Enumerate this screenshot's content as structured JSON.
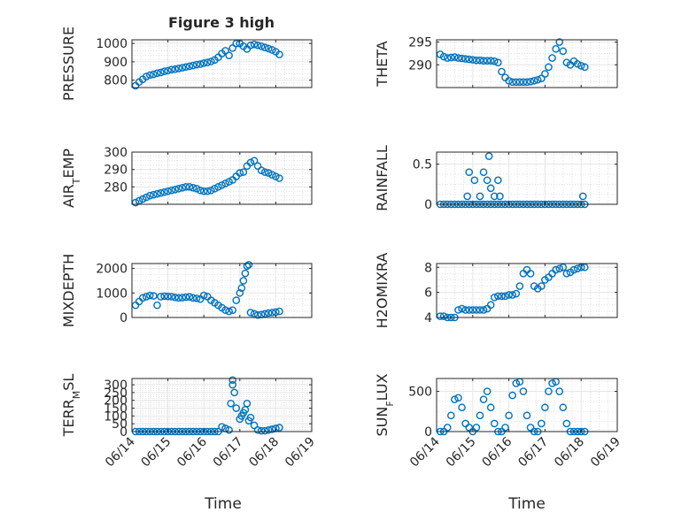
{
  "figure": {
    "title": "Figure 3 high",
    "xlabel": "Time"
  },
  "chart_data": [
    {
      "type": "scatter",
      "ylabel": "PRESSURE",
      "ylim": [
        760,
        1020
      ],
      "yticks": [
        800,
        900,
        1000
      ],
      "x_tick_labels": [
        "06/14",
        "06/15",
        "06/16",
        "06/17",
        "06/18",
        "06/19"
      ],
      "x_range_days": [
        0,
        5
      ],
      "grid": true,
      "marker_color": "#0072BD",
      "x": [
        0.1,
        0.2,
        0.3,
        0.4,
        0.5,
        0.6,
        0.7,
        0.8,
        0.9,
        1.0,
        1.1,
        1.2,
        1.3,
        1.4,
        1.5,
        1.6,
        1.7,
        1.8,
        1.9,
        2.0,
        2.1,
        2.2,
        2.3,
        2.4,
        2.5,
        2.6,
        2.7,
        2.8,
        2.9,
        3.0,
        3.1,
        3.2,
        3.3,
        3.4,
        3.5,
        3.6,
        3.7,
        3.8,
        3.9,
        4.0,
        4.1
      ],
      "y": [
        770,
        790,
        805,
        820,
        828,
        832,
        838,
        842,
        848,
        852,
        858,
        860,
        864,
        868,
        872,
        876,
        880,
        885,
        888,
        893,
        897,
        902,
        910,
        925,
        945,
        960,
        935,
        975,
        1000,
        1000,
        985,
        970,
        990,
        995,
        990,
        985,
        978,
        972,
        965,
        955,
        940
      ]
    },
    {
      "type": "scatter",
      "ylabel": "THETA",
      "ylim": [
        285,
        295.5
      ],
      "yticks": [
        290,
        295
      ],
      "x_tick_labels": [
        "06/14",
        "06/15",
        "06/16",
        "06/17",
        "06/18",
        "06/19"
      ],
      "x_range_days": [
        0,
        5
      ],
      "grid": true,
      "marker_color": "#0072BD",
      "x": [
        0.1,
        0.2,
        0.3,
        0.4,
        0.5,
        0.6,
        0.7,
        0.8,
        0.9,
        1.0,
        1.1,
        1.2,
        1.3,
        1.4,
        1.5,
        1.6,
        1.7,
        1.8,
        1.9,
        2.0,
        2.1,
        2.2,
        2.3,
        2.4,
        2.5,
        2.6,
        2.7,
        2.8,
        2.9,
        3.0,
        3.1,
        3.2,
        3.3,
        3.4,
        3.5,
        3.6,
        3.7,
        3.8,
        3.9,
        4.0,
        4.1
      ],
      "y": [
        292.3,
        291.8,
        291.5,
        291.6,
        291.7,
        291.5,
        291.4,
        291.3,
        291.2,
        291.1,
        291.0,
        291.0,
        290.9,
        290.9,
        290.9,
        290.8,
        290.5,
        288.5,
        287.2,
        286.5,
        286.2,
        286.2,
        286.2,
        286.2,
        286.2,
        286.3,
        286.5,
        286.7,
        287.0,
        288.0,
        289.5,
        291.5,
        293.5,
        295.0,
        293.0,
        290.5,
        290.0,
        290.8,
        290.2,
        289.8,
        289.5
      ]
    },
    {
      "type": "scatter",
      "ylabel": "AIR_TEMP",
      "ylim": [
        270,
        300
      ],
      "yticks": [
        280,
        290,
        300
      ],
      "x_tick_labels": [
        "06/14",
        "06/15",
        "06/16",
        "06/17",
        "06/18",
        "06/19"
      ],
      "x_range_days": [
        0,
        5
      ],
      "grid": true,
      "marker_color": "#0072BD",
      "x": [
        0.1,
        0.2,
        0.3,
        0.4,
        0.5,
        0.6,
        0.7,
        0.8,
        0.9,
        1.0,
        1.1,
        1.2,
        1.3,
        1.4,
        1.5,
        1.6,
        1.7,
        1.8,
        1.9,
        2.0,
        2.1,
        2.2,
        2.3,
        2.4,
        2.5,
        2.6,
        2.7,
        2.8,
        2.9,
        3.0,
        3.1,
        3.2,
        3.3,
        3.4,
        3.5,
        3.6,
        3.7,
        3.8,
        3.9,
        4.0,
        4.1
      ],
      "y": [
        271,
        272,
        273,
        274,
        275,
        275.5,
        276,
        276.5,
        277,
        277.5,
        278,
        278.5,
        279,
        279.5,
        280,
        280,
        279.5,
        279,
        278,
        277.5,
        277.5,
        278,
        279,
        280,
        281,
        282,
        283,
        284,
        286,
        288,
        288.5,
        292,
        294,
        295,
        292,
        289.5,
        288.5,
        288,
        287,
        286,
        285
      ]
    },
    {
      "type": "scatter",
      "ylabel": "RAINFALL",
      "ylim": [
        0,
        0.65
      ],
      "yticks": [
        0,
        0.5
      ],
      "x_tick_labels": [
        "06/14",
        "06/15",
        "06/16",
        "06/17",
        "06/18",
        "06/19"
      ],
      "x_range_days": [
        0,
        5
      ],
      "grid": true,
      "marker_color": "#0072BD",
      "x": [
        0.1,
        0.2,
        0.3,
        0.4,
        0.5,
        0.6,
        0.7,
        0.8,
        0.9,
        1.0,
        1.1,
        1.2,
        1.3,
        1.4,
        1.5,
        1.6,
        1.7,
        1.8,
        1.9,
        2.0,
        2.1,
        2.2,
        2.3,
        2.4,
        2.5,
        2.6,
        2.7,
        2.8,
        2.9,
        3.0,
        3.1,
        3.2,
        3.3,
        3.4,
        3.5,
        3.6,
        3.7,
        3.8,
        3.9,
        4.0,
        4.1,
        0.85,
        0.9,
        1.05,
        1.2,
        1.3,
        1.4,
        1.45,
        1.5,
        1.6,
        1.7,
        1.75,
        4.05
      ],
      "y": [
        0,
        0,
        0,
        0,
        0,
        0,
        0,
        0,
        0,
        0,
        0,
        0,
        0,
        0,
        0,
        0,
        0,
        0,
        0,
        0,
        0,
        0,
        0,
        0,
        0,
        0,
        0,
        0,
        0,
        0,
        0,
        0,
        0,
        0,
        0,
        0,
        0,
        0,
        0,
        0,
        0,
        0.1,
        0.4,
        0.3,
        0.1,
        0.4,
        0.3,
        0.6,
        0.2,
        0.1,
        0.3,
        0.1,
        0.1
      ]
    },
    {
      "type": "scatter",
      "ylabel": "MIXDEPTH",
      "ylim": [
        0,
        2200
      ],
      "yticks": [
        0,
        1000,
        2000
      ],
      "x_tick_labels": [
        "06/14",
        "06/15",
        "06/16",
        "06/17",
        "06/18",
        "06/19"
      ],
      "x_range_days": [
        0,
        5
      ],
      "grid": true,
      "marker_color": "#0072BD",
      "x": [
        0.1,
        0.2,
        0.3,
        0.4,
        0.5,
        0.6,
        0.7,
        0.8,
        0.9,
        1.0,
        1.1,
        1.2,
        1.3,
        1.4,
        1.5,
        1.6,
        1.7,
        1.8,
        1.9,
        2.0,
        2.1,
        2.2,
        2.3,
        2.4,
        2.5,
        2.6,
        2.7,
        2.8,
        2.9,
        3.0,
        3.1,
        3.2,
        3.3,
        3.4,
        3.5,
        3.6,
        3.7,
        3.8,
        3.9,
        4.0,
        4.1,
        3.05,
        3.15,
        3.25
      ],
      "y": [
        500,
        650,
        800,
        850,
        900,
        880,
        500,
        850,
        870,
        860,
        850,
        820,
        800,
        810,
        830,
        840,
        800,
        780,
        750,
        900,
        850,
        700,
        600,
        500,
        400,
        300,
        250,
        300,
        700,
        1000,
        1500,
        2100,
        200,
        150,
        100,
        120,
        150,
        180,
        200,
        220,
        250,
        1200,
        1800,
        2150
      ]
    },
    {
      "type": "scatter",
      "ylabel": "H2OMIXRA",
      "ylim": [
        4,
        8.3
      ],
      "yticks": [
        4,
        6,
        8
      ],
      "x_tick_labels": [
        "06/14",
        "06/15",
        "06/16",
        "06/17",
        "06/18",
        "06/19"
      ],
      "x_range_days": [
        0,
        5
      ],
      "grid": true,
      "marker_color": "#0072BD",
      "x": [
        0.1,
        0.2,
        0.3,
        0.4,
        0.5,
        0.6,
        0.7,
        0.8,
        0.9,
        1.0,
        1.1,
        1.2,
        1.3,
        1.4,
        1.5,
        1.6,
        1.7,
        1.8,
        1.9,
        2.0,
        2.1,
        2.2,
        2.3,
        2.4,
        2.5,
        2.6,
        2.7,
        2.8,
        2.9,
        3.0,
        3.1,
        3.2,
        3.3,
        3.4,
        3.5,
        3.6,
        3.7,
        3.8,
        3.9,
        4.0,
        4.1
      ],
      "y": [
        4.1,
        4.1,
        4.0,
        4.0,
        4.0,
        4.6,
        4.7,
        4.6,
        4.6,
        4.6,
        4.6,
        4.6,
        4.6,
        4.7,
        5.0,
        5.6,
        5.7,
        5.7,
        5.7,
        5.8,
        5.8,
        5.9,
        6.5,
        7.5,
        7.8,
        7.5,
        6.5,
        6.3,
        6.5,
        7.0,
        7.2,
        7.5,
        7.8,
        7.9,
        8.0,
        7.5,
        7.6,
        7.8,
        7.9,
        8.0,
        8.0
      ]
    },
    {
      "type": "scatter",
      "ylabel": "TERR_MSL",
      "ylim": [
        0,
        340
      ],
      "yticks": [
        0,
        50,
        100,
        150,
        200,
        250,
        300
      ],
      "x_tick_labels": [
        "06/14",
        "06/15",
        "06/16",
        "06/17",
        "06/18",
        "06/19"
      ],
      "x_range_days": [
        0,
        5
      ],
      "grid": true,
      "marker_color": "#0072BD",
      "x": [
        0.1,
        0.2,
        0.3,
        0.4,
        0.5,
        0.6,
        0.7,
        0.8,
        0.9,
        1.0,
        1.1,
        1.2,
        1.3,
        1.4,
        1.5,
        1.6,
        1.7,
        1.8,
        1.9,
        2.0,
        2.1,
        2.2,
        2.3,
        2.4,
        2.5,
        2.6,
        2.7,
        2.8,
        2.9,
        3.0,
        3.1,
        3.2,
        3.3,
        3.4,
        3.5,
        3.6,
        3.7,
        3.8,
        3.9,
        4.0,
        4.1,
        2.75,
        2.8,
        2.85,
        3.05,
        3.15,
        3.25
      ],
      "y": [
        0,
        0,
        0,
        0,
        0,
        0,
        0,
        0,
        0,
        0,
        0,
        0,
        0,
        0,
        0,
        0,
        0,
        0,
        0,
        0,
        0,
        0,
        0,
        0,
        30,
        20,
        10,
        330,
        150,
        80,
        120,
        180,
        90,
        40,
        10,
        5,
        5,
        10,
        15,
        20,
        25,
        180,
        300,
        250,
        100,
        140,
        70
      ]
    },
    {
      "type": "scatter",
      "ylabel": "SUN_FLUX",
      "ylim": [
        0,
        660
      ],
      "yticks": [
        0,
        500
      ],
      "x_tick_labels": [
        "06/14",
        "06/15",
        "06/16",
        "06/17",
        "06/18",
        "06/19"
      ],
      "x_range_days": [
        0,
        5
      ],
      "grid": true,
      "marker_color": "#0072BD",
      "x": [
        0.1,
        0.2,
        0.3,
        0.4,
        0.5,
        0.6,
        0.7,
        0.8,
        0.9,
        1.0,
        1.1,
        1.2,
        1.3,
        1.4,
        1.5,
        1.6,
        1.7,
        1.8,
        1.9,
        2.0,
        2.1,
        2.2,
        2.3,
        2.4,
        2.5,
        2.6,
        2.7,
        2.8,
        2.9,
        3.0,
        3.1,
        3.2,
        3.3,
        3.4,
        3.5,
        3.6,
        3.7,
        3.8,
        3.9,
        4.0,
        4.1
      ],
      "y": [
        0,
        0,
        50,
        200,
        400,
        420,
        300,
        100,
        50,
        0,
        50,
        200,
        400,
        500,
        300,
        100,
        0,
        0,
        50,
        200,
        450,
        600,
        620,
        500,
        200,
        50,
        0,
        0,
        100,
        300,
        500,
        600,
        620,
        500,
        300,
        100,
        0,
        0,
        0,
        0,
        0
      ]
    }
  ]
}
